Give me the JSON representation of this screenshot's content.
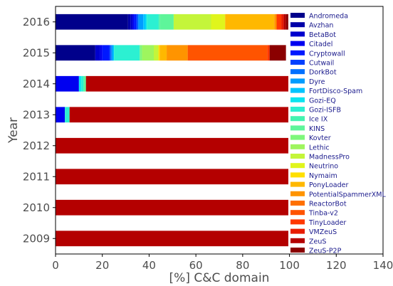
{
  "chart_data": {
    "type": "bar",
    "orientation": "horizontal",
    "stacked": true,
    "title": "",
    "xlabel": "[%] C&C domain",
    "ylabel": "Year",
    "xlim": [
      0,
      140
    ],
    "xticks": [
      0,
      20,
      40,
      60,
      80,
      100,
      120,
      140
    ],
    "categories": [
      "2009",
      "2010",
      "2011",
      "2012",
      "2013",
      "2014",
      "2015",
      "2016"
    ],
    "grid": false,
    "legend_position": "right, inside plot",
    "series": [
      {
        "name": "Andromeda",
        "color": "#00008b",
        "values": [
          0,
          0,
          0,
          0,
          0,
          0,
          17,
          31
        ]
      },
      {
        "name": "Avzhan",
        "color": "#0000a8",
        "values": [
          0,
          0,
          0,
          0,
          0,
          0,
          0,
          1
        ]
      },
      {
        "name": "BetaBot",
        "color": "#0000cd",
        "values": [
          0,
          0,
          0,
          0,
          0,
          0,
          2,
          1
        ]
      },
      {
        "name": "Citadel",
        "color": "#0000f0",
        "values": [
          0,
          0,
          0,
          0,
          4,
          10,
          1,
          0.5
        ]
      },
      {
        "name": "Cryptowall",
        "color": "#0018ff",
        "values": [
          0,
          0,
          0,
          0,
          0,
          0,
          3,
          1
        ]
      },
      {
        "name": "Cutwail",
        "color": "#0040ff",
        "values": [
          0,
          0,
          0,
          0,
          0,
          0,
          0.5,
          0.5
        ]
      },
      {
        "name": "DorkBot",
        "color": "#0070ff",
        "values": [
          0,
          0,
          0,
          0,
          0,
          0,
          0.5,
          0.5
        ]
      },
      {
        "name": "Dyre",
        "color": "#009cff",
        "values": [
          0,
          0,
          0,
          0,
          0,
          0,
          0.5,
          2
        ]
      },
      {
        "name": "FortDisco-Spam",
        "color": "#00c4ff",
        "values": [
          0,
          0,
          0,
          0,
          0,
          0,
          0.5,
          1
        ]
      },
      {
        "name": "Gozi-EQ",
        "color": "#0ae4f0",
        "values": [
          0,
          0,
          0,
          0,
          0,
          1,
          0,
          0.5
        ]
      },
      {
        "name": "Gozi-ISFB",
        "color": "#2cf0d2",
        "values": [
          0,
          0,
          0,
          0,
          2,
          1,
          11,
          5
        ]
      },
      {
        "name": "Ice IX",
        "color": "#44f3b0",
        "values": [
          0,
          0,
          0,
          0,
          0,
          0,
          0,
          0.5
        ]
      },
      {
        "name": "KINS",
        "color": "#5ef59a",
        "values": [
          0,
          0,
          0,
          0,
          0,
          1,
          0,
          6
        ]
      },
      {
        "name": "Kovter",
        "color": "#7ef77c",
        "values": [
          0,
          0,
          0,
          0,
          0,
          0,
          1,
          0
        ]
      },
      {
        "name": "Lethic",
        "color": "#9ef55e",
        "values": [
          0,
          0,
          0,
          0,
          0,
          0,
          5,
          0
        ]
      },
      {
        "name": "MadnessPro",
        "color": "#c4f53a",
        "values": [
          0,
          0,
          0,
          0,
          0,
          0,
          2,
          16
        ]
      },
      {
        "name": "Neutrino",
        "color": "#e0f51c",
        "values": [
          0,
          0,
          0,
          0,
          0,
          0,
          0,
          6
        ]
      },
      {
        "name": "Nymaim",
        "color": "#ffe000",
        "values": [
          0,
          0,
          0,
          0,
          0,
          0,
          0.5,
          0
        ]
      },
      {
        "name": "PonyLoader",
        "color": "#ffb800",
        "values": [
          0,
          0,
          0,
          0,
          0,
          0,
          3,
          21
        ]
      },
      {
        "name": "PotentialSpammerXML",
        "color": "#ff9400",
        "values": [
          0,
          0,
          0,
          0,
          0,
          0,
          9,
          1
        ]
      },
      {
        "name": "ReactorBot",
        "color": "#ff7000",
        "values": [
          0,
          0,
          0,
          0,
          0,
          0,
          0,
          0
        ]
      },
      {
        "name": "Tinba-v2",
        "color": "#ff5400",
        "values": [
          0,
          0,
          0,
          0,
          0,
          0,
          34,
          0
        ]
      },
      {
        "name": "TinyLoader",
        "color": "#ff3800",
        "values": [
          0,
          0,
          0,
          0,
          0,
          0,
          1,
          2
        ]
      },
      {
        "name": "VMZeuS",
        "color": "#e81c00",
        "values": [
          0,
          0,
          0,
          0,
          0,
          0,
          0,
          1
        ]
      },
      {
        "name": "ZeuS",
        "color": "#b40000",
        "values": [
          100,
          100,
          100,
          100,
          94,
          87,
          0,
          1
        ]
      },
      {
        "name": "ZeuS-P2P",
        "color": "#8b0000",
        "values": [
          0,
          0,
          0,
          0,
          0,
          0,
          7,
          1
        ]
      }
    ]
  }
}
